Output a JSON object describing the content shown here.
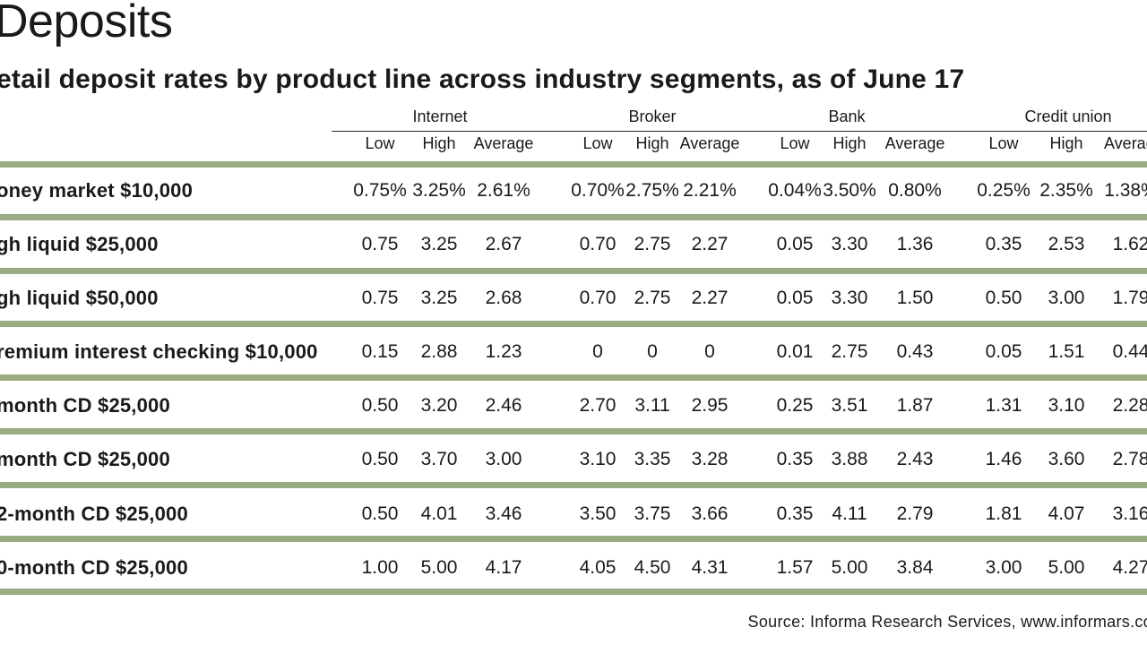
{
  "title": "Deposits",
  "subtitle": "etail deposit rates by product line across industry segments, as of June 17",
  "source": "Source: Informa Research Services, www.informars.co",
  "chart_data": {
    "type": "table",
    "groups": [
      "Internet",
      "Broker",
      "Bank",
      "Credit union"
    ],
    "subcolumns": [
      "Low",
      "High",
      "Average"
    ],
    "subcolumns_last_visible": [
      "Low",
      "High",
      "Averag"
    ],
    "rows": [
      {
        "label": "oney market $10,000",
        "values": [
          "0.75%",
          "3.25%",
          "2.61%",
          "0.70%",
          "2.75%",
          "2.21%",
          "0.04%",
          "3.50%",
          "0.80%",
          "0.25%",
          "2.35%",
          "1.38%"
        ]
      },
      {
        "label": "gh liquid $25,000",
        "values": [
          "0.75",
          "3.25",
          "2.67",
          "0.70",
          "2.75",
          "2.27",
          "0.05",
          "3.30",
          "1.36",
          "0.35",
          "2.53",
          "1.62"
        ]
      },
      {
        "label": "gh liquid $50,000",
        "values": [
          "0.75",
          "3.25",
          "2.68",
          "0.70",
          "2.75",
          "2.27",
          "0.05",
          "3.30",
          "1.50",
          "0.50",
          "3.00",
          "1.79"
        ]
      },
      {
        "label": "remium interest checking $10,000",
        "values": [
          "0.15",
          "2.88",
          "1.23",
          "0",
          "0",
          "0",
          "0.01",
          "2.75",
          "0.43",
          "0.05",
          "1.51",
          "0.44"
        ]
      },
      {
        "label": "month CD $25,000",
        "values": [
          "0.50",
          "3.20",
          "2.46",
          "2.70",
          "3.11",
          "2.95",
          "0.25",
          "3.51",
          "1.87",
          "1.31",
          "3.10",
          "2.28"
        ]
      },
      {
        "label": "month CD $25,000",
        "values": [
          "0.50",
          "3.70",
          "3.00",
          "3.10",
          "3.35",
          "3.28",
          "0.35",
          "3.88",
          "2.43",
          "1.46",
          "3.60",
          "2.78"
        ]
      },
      {
        "label": "2-month CD $25,000",
        "values": [
          "0.50",
          "4.01",
          "3.46",
          "3.50",
          "3.75",
          "3.66",
          "0.35",
          "4.11",
          "2.79",
          "1.81",
          "4.07",
          "3.16"
        ]
      },
      {
        "label": "0-month CD $25,000",
        "values": [
          "1.00",
          "5.00",
          "4.17",
          "4.05",
          "4.50",
          "4.31",
          "1.57",
          "5.00",
          "3.84",
          "3.00",
          "5.00",
          "4.27"
        ]
      }
    ]
  },
  "colors": {
    "band": "#9aac80",
    "text": "#1a1a1a",
    "background": "#ffffff"
  }
}
